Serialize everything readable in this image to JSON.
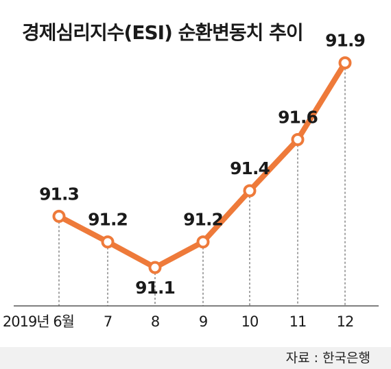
{
  "title": "경제심리지수(ESI) 순환변동치 추이",
  "source": "자료 : 한국은행",
  "colors": {
    "line": "#ee7a3a",
    "marker_fill": "#ffffff",
    "axis": "#555555",
    "guide": "#444444",
    "text": "#1a1a1a"
  },
  "chart_data": {
    "type": "line",
    "title": "경제심리지수(ESI) 순환변동치 추이",
    "categories": [
      "2019년 6월",
      "7",
      "8",
      "9",
      "10",
      "11",
      "12"
    ],
    "series": [
      {
        "values": [
          91.3,
          91.2,
          91.1,
          91.2,
          91.4,
          91.6,
          91.9
        ]
      }
    ],
    "data_labels": [
      "91.3",
      "91.2",
      "91.1",
      "91.2",
      "91.4",
      "91.6",
      "91.9"
    ],
    "xlabel": "",
    "ylabel": "",
    "ylim": [
      91.0,
      92.0
    ],
    "grid": false,
    "legend": "none"
  }
}
